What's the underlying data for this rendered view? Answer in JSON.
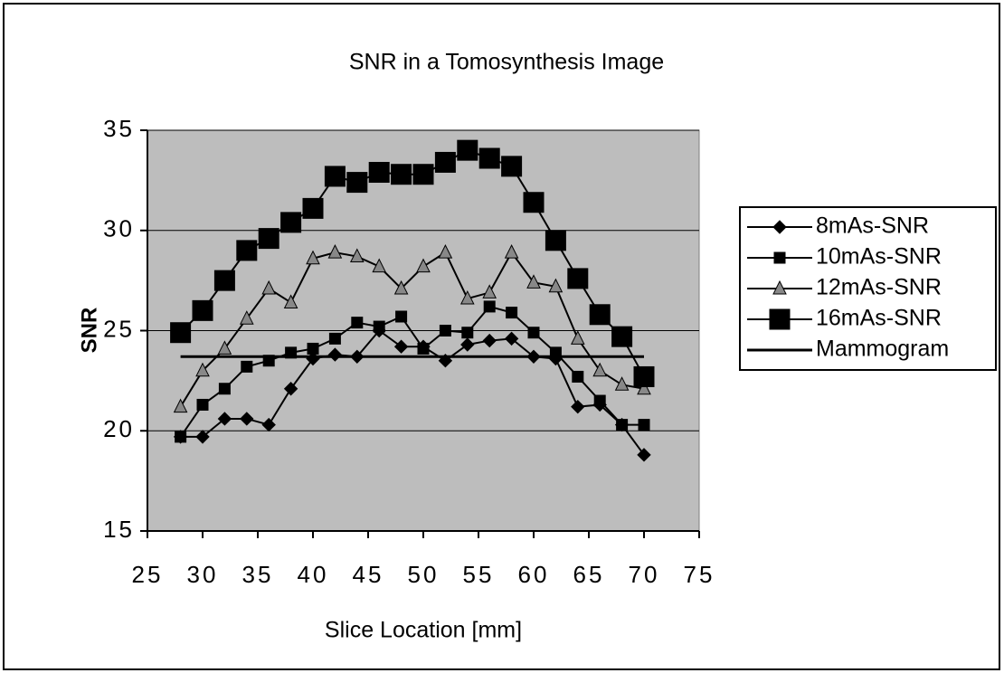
{
  "chart_data": {
    "type": "line",
    "title": "SNR in a Tomosynthesis Image",
    "x_label": "Slice Location [mm]",
    "y_label": "SNR",
    "x": [
      28,
      30,
      32,
      34,
      36,
      38,
      40,
      42,
      44,
      46,
      48,
      50,
      52,
      54,
      56,
      58,
      60,
      62,
      64,
      66,
      68,
      70
    ],
    "series": [
      {
        "name": "8mAs-SNR",
        "color": "#000000",
        "marker": "diamond",
        "values": [
          19.7,
          19.7,
          20.6,
          20.6,
          20.3,
          22.1,
          23.6,
          23.8,
          23.7,
          25.0,
          24.2,
          24.2,
          23.5,
          24.3,
          24.5,
          24.6,
          23.7,
          23.6,
          21.2,
          21.3,
          20.3,
          18.8
        ]
      },
      {
        "name": "10mAs-SNR",
        "color": "#000000",
        "marker": "square",
        "values": [
          19.7,
          21.3,
          22.1,
          23.2,
          23.5,
          23.9,
          24.1,
          24.6,
          25.4,
          25.2,
          25.7,
          24.1,
          25.0,
          24.9,
          26.2,
          25.9,
          24.9,
          23.9,
          22.7,
          21.5,
          20.3,
          20.3
        ]
      },
      {
        "name": "12mAs-SNR",
        "color": "#000000",
        "marker": "triangle",
        "values": [
          21.2,
          23.0,
          24.1,
          25.6,
          27.1,
          26.4,
          28.6,
          28.9,
          28.7,
          28.2,
          27.1,
          28.2,
          28.9,
          26.6,
          26.9,
          28.9,
          27.4,
          27.2,
          24.6,
          23.0,
          22.3,
          22.1
        ]
      },
      {
        "name": "16mAs-SNR",
        "color": "#000000",
        "marker": "bigsquare",
        "values": [
          24.9,
          26.0,
          27.5,
          29.0,
          29.6,
          30.4,
          31.1,
          32.7,
          32.4,
          32.9,
          32.8,
          32.8,
          33.4,
          34.0,
          33.6,
          33.2,
          31.4,
          29.5,
          27.6,
          25.8,
          24.7,
          22.7
        ]
      },
      {
        "name": "Mammogram",
        "color": "#000000",
        "marker": "none",
        "values": [
          23.7,
          23.7,
          23.7,
          23.7,
          23.7,
          23.7,
          23.7,
          23.7,
          23.7,
          23.7,
          23.7,
          23.7,
          23.7,
          23.7,
          23.7,
          23.7,
          23.7,
          23.7,
          23.7,
          23.7,
          23.7,
          23.7
        ]
      }
    ],
    "xlim": [
      25,
      75
    ],
    "xticks": [
      25,
      30,
      35,
      40,
      45,
      50,
      55,
      60,
      65,
      70,
      75
    ],
    "ylim": [
      15,
      35
    ],
    "yticks": [
      15,
      20,
      25,
      30,
      35
    ],
    "grid": true,
    "legend": "right",
    "plot_background": "#bdbdbd"
  }
}
